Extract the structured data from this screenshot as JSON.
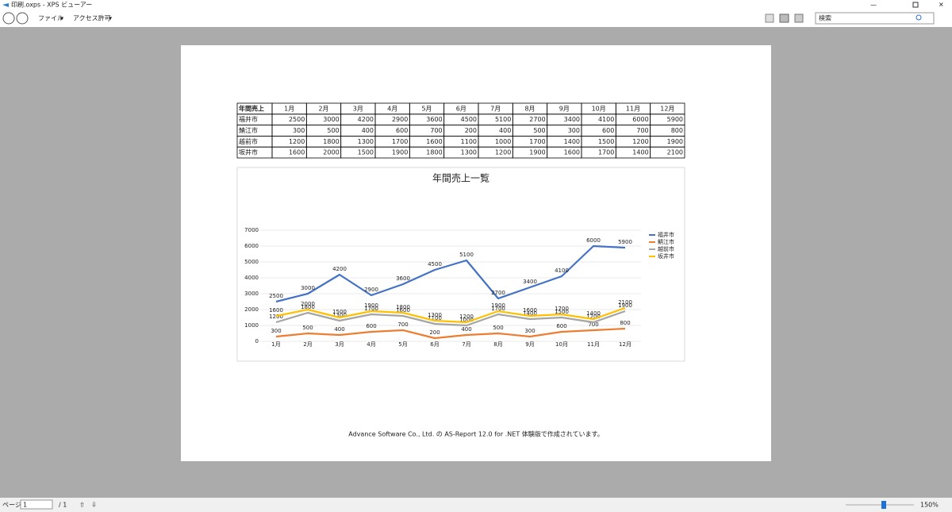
{
  "window": {
    "title": "印刷.oxps - XPS ビューアー",
    "menu": [
      "ファイル",
      "アクセス許可"
    ],
    "search_placeholder": "検索"
  },
  "table": {
    "header": [
      "年間売上",
      "1月",
      "2月",
      "3月",
      "4月",
      "5月",
      "6月",
      "7月",
      "8月",
      "9月",
      "10月",
      "11月",
      "12月"
    ],
    "rows": [
      [
        "福井市",
        2500,
        3000,
        4200,
        2900,
        3600,
        4500,
        5100,
        2700,
        3400,
        4100,
        6000,
        5900
      ],
      [
        "鯖江市",
        300,
        500,
        400,
        600,
        700,
        200,
        400,
        500,
        300,
        600,
        700,
        800
      ],
      [
        "越前市",
        1200,
        1800,
        1300,
        1700,
        1600,
        1100,
        1000,
        1700,
        1400,
        1500,
        1200,
        1900
      ],
      [
        "坂井市",
        1600,
        2000,
        1500,
        1900,
        1800,
        1300,
        1200,
        1900,
        1600,
        1700,
        1400,
        2100
      ]
    ]
  },
  "chart_data": {
    "type": "line",
    "title": "年間売上一覧",
    "categories": [
      "1月",
      "2月",
      "3月",
      "4月",
      "5月",
      "6月",
      "7月",
      "8月",
      "9月",
      "10月",
      "11月",
      "12月"
    ],
    "series": [
      {
        "name": "福井市",
        "color": "#4472c4",
        "values": [
          2500,
          3000,
          4200,
          2900,
          3600,
          4500,
          5100,
          2700,
          3400,
          4100,
          6000,
          5900
        ]
      },
      {
        "name": "鯖江市",
        "color": "#ed7d31",
        "values": [
          300,
          500,
          400,
          600,
          700,
          200,
          400,
          500,
          300,
          600,
          700,
          800
        ]
      },
      {
        "name": "越前市",
        "color": "#a5a5a5",
        "values": [
          1200,
          1800,
          1300,
          1700,
          1600,
          1100,
          1000,
          1700,
          1400,
          1500,
          1200,
          1900
        ]
      },
      {
        "name": "坂井市",
        "color": "#ffc000",
        "values": [
          1600,
          2000,
          1500,
          1900,
          1800,
          1300,
          1200,
          1900,
          1600,
          1700,
          1400,
          2100
        ]
      }
    ],
    "ylim": [
      0,
      7000
    ],
    "yticks": [
      0,
      1000,
      2000,
      3000,
      4000,
      5000,
      6000,
      7000
    ],
    "grid": true,
    "legend": "right"
  },
  "footer": "Advance Software Co., Ltd. の AS-Report 12.0 for .NET 体験版で作成されています。",
  "status": {
    "page_label": "ページ",
    "page": "1",
    "page_total": "/ 1",
    "zoom": "150%"
  }
}
